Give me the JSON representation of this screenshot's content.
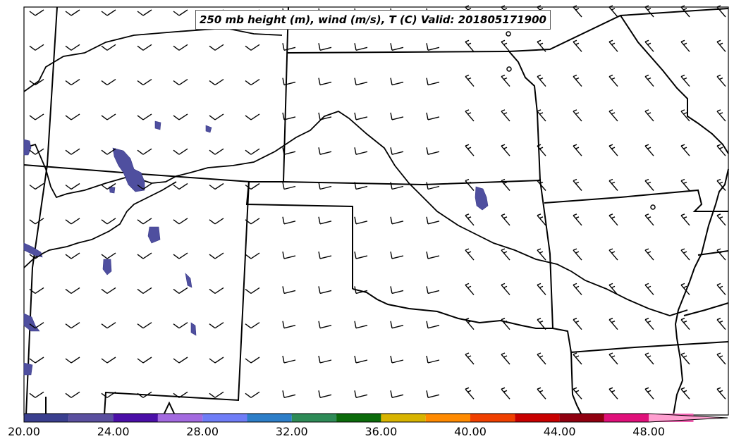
{
  "title": "250 mb height (m), wind (m/s), T (C) Valid: 201805171900",
  "colorbar": {
    "labels": [
      "20.00",
      "24.00",
      "28.00",
      "32.00",
      "36.00",
      "40.00",
      "44.00",
      "48.00"
    ],
    "colors": [
      "#3a3f8f",
      "#5a4f9f",
      "#4b0fa8",
      "#a36ae0",
      "#6f7df7",
      "#2d7ec8",
      "#2e8b57",
      "#0b6b0b",
      "#d8b400",
      "#ff8a00",
      "#f04000",
      "#c80000",
      "#900010",
      "#e0107a",
      "#f060b0",
      "#ff9fd0"
    ]
  },
  "map": {
    "feature_color": "#4f4f9f",
    "boundary_color": "#000000",
    "barb_color": "#000000"
  }
}
